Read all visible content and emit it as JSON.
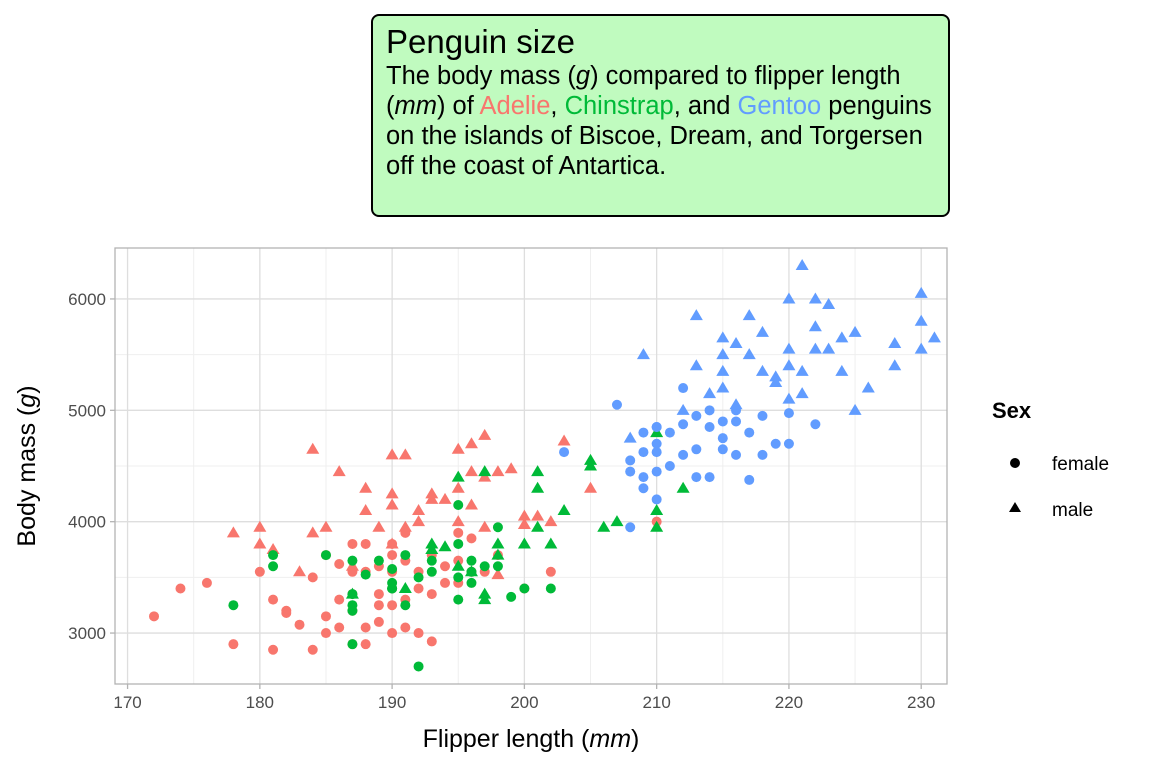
{
  "colors": {
    "Adelie": "#F8766D",
    "Chinstrap": "#00BA38",
    "Gentoo": "#619CFF",
    "title_box_fill": "#c0fbbf",
    "panel_border": "#b3b3b3",
    "grid_major": "#dedede",
    "grid_minor": "#efefef"
  },
  "chart_data": {
    "type": "scatter",
    "title": "Penguin size",
    "subtitle": {
      "p1": "The body mass (",
      "g": "g",
      "p2": ") compared to flipper length (",
      "mm": "mm",
      "p3": ") of ",
      "adelie": "Adelie",
      "sep1": ", ",
      "chinstrap": "Chinstrap",
      "sep2": ", and ",
      "gentoo": "Gentoo",
      "p4": " penguins on the islands of Biscoe, Dream, and Torgersen off the coast of Antartica."
    },
    "xlabel": {
      "prefix": "Flipper length (",
      "unit": "mm",
      "suffix": ")"
    },
    "ylabel": {
      "prefix": "Body mass (",
      "unit": "g",
      "suffix": ")"
    },
    "xlim": [
      169.05,
      231.95
    ],
    "ylim": [
      2542.5,
      6457.5
    ],
    "xticks": [
      170,
      180,
      190,
      200,
      210,
      220,
      230
    ],
    "yticks": [
      3000,
      4000,
      5000,
      6000
    ],
    "grid": true,
    "legend": {
      "title": "Sex",
      "position": "right",
      "entries": [
        {
          "label": "female",
          "shape": "circle"
        },
        {
          "label": "male",
          "shape": "triangle"
        }
      ]
    },
    "series": [
      {
        "name": "Adelie female",
        "species": "Adelie",
        "sex": "female",
        "x": [
          172,
          174,
          176,
          178,
          180,
          181,
          181,
          182,
          182,
          183,
          184,
          184,
          185,
          185,
          185,
          186,
          186,
          186,
          187,
          187,
          187,
          187,
          187,
          188,
          188,
          188,
          188,
          189,
          189,
          189,
          189,
          190,
          190,
          190,
          190,
          190,
          190,
          191,
          191,
          191,
          191,
          192,
          192,
          192,
          193,
          193,
          193,
          194,
          194,
          195,
          195,
          195,
          196,
          196,
          197,
          198,
          200,
          202,
          210
        ],
        "y": [
          3150,
          3400,
          3450,
          2900,
          3550,
          2850,
          3300,
          3200,
          3180,
          3075,
          2850,
          3500,
          3000,
          3150,
          3700,
          3050,
          3300,
          3620,
          2900,
          3200,
          3350,
          3550,
          3800,
          2900,
          3050,
          3550,
          3800,
          3100,
          3250,
          3350,
          3600,
          3000,
          3250,
          3400,
          3550,
          3700,
          3800,
          3050,
          3300,
          3650,
          3900,
          3000,
          3400,
          3550,
          2925,
          3350,
          3700,
          3450,
          3600,
          3450,
          3650,
          3900,
          3550,
          3850,
          3550,
          3700,
          3400,
          3550,
          4000
        ]
      },
      {
        "name": "Adelie male",
        "species": "Adelie",
        "sex": "male",
        "x": [
          178,
          180,
          180,
          181,
          183,
          184,
          184,
          185,
          186,
          187,
          188,
          188,
          189,
          190,
          190,
          190,
          190,
          191,
          191,
          192,
          192,
          193,
          193,
          194,
          195,
          195,
          195,
          196,
          196,
          196,
          197,
          197,
          197,
          198,
          198,
          199,
          200,
          200,
          201,
          202,
          203,
          205
        ],
        "y": [
          3900,
          3950,
          3800,
          3750,
          3550,
          3900,
          4650,
          3950,
          4450,
          3600,
          4300,
          4100,
          3950,
          4600,
          4250,
          3800,
          4150,
          4600,
          3950,
          4100,
          4000,
          4200,
          4250,
          4200,
          4650,
          4300,
          4000,
          4700,
          4450,
          4150,
          4775,
          4400,
          3950,
          4450,
          3525,
          4475,
          4050,
          3975,
          4050,
          4000,
          4725,
          4300
        ]
      },
      {
        "name": "Chinstrap female",
        "species": "Chinstrap",
        "sex": "female",
        "x": [
          178,
          181,
          181,
          185,
          187,
          187,
          187,
          187,
          187,
          188,
          189,
          190,
          190,
          190,
          190,
          191,
          191,
          192,
          192,
          193,
          193,
          195,
          195,
          195,
          195,
          196,
          196,
          196,
          197,
          198,
          198,
          199,
          200,
          202
        ],
        "y": [
          3250,
          3700,
          3600,
          3700,
          3650,
          3350,
          3200,
          3250,
          2900,
          3525,
          3650,
          3450,
          3575,
          3400,
          3400,
          3700,
          3250,
          3500,
          2700,
          3650,
          3550,
          4150,
          3800,
          3300,
          3500,
          3650,
          3550,
          3450,
          3600,
          3950,
          3600,
          3325,
          3400,
          3400
        ]
      },
      {
        "name": "Chinstrap male",
        "species": "Chinstrap",
        "sex": "male",
        "x": [
          187,
          191,
          193,
          193,
          194,
          195,
          195,
          196,
          197,
          197,
          197,
          198,
          198,
          200,
          201,
          201,
          201,
          202,
          203,
          205,
          205,
          206,
          207,
          210,
          210,
          210,
          212
        ],
        "y": [
          3350,
          3400,
          3800,
          3750,
          3775,
          4400,
          3600,
          3550,
          4450,
          3350,
          3300,
          3800,
          3700,
          3800,
          4450,
          4300,
          3950,
          3800,
          4100,
          4550,
          4500,
          3950,
          4000,
          4800,
          4100,
          3950,
          4300
        ]
      },
      {
        "name": "Gentoo female",
        "species": "Gentoo",
        "sex": "female",
        "x": [
          203,
          207,
          208,
          208,
          208,
          209,
          209,
          209,
          209,
          210,
          210,
          210,
          210,
          210,
          210,
          211,
          211,
          212,
          212,
          212,
          213,
          213,
          213,
          214,
          214,
          214,
          215,
          215,
          215,
          216,
          216,
          216,
          217,
          217,
          218,
          218,
          219,
          220,
          220,
          222
        ],
        "y": [
          4625,
          5050,
          4450,
          4550,
          3950,
          4300,
          4625,
          4800,
          4400,
          4850,
          4700,
          4625,
          4450,
          4200,
          4850,
          4800,
          4500,
          5200,
          4875,
          4600,
          4400,
          4950,
          4650,
          5000,
          4850,
          4400,
          4750,
          4650,
          4900,
          4900,
          5000,
          4600,
          4375,
          4800,
          4950,
          4600,
          4700,
          4700,
          4975,
          4875
        ]
      },
      {
        "name": "Gentoo male",
        "species": "Gentoo",
        "sex": "male",
        "x": [
          208,
          209,
          212,
          213,
          213,
          214,
          215,
          215,
          215,
          215,
          216,
          216,
          217,
          217,
          218,
          218,
          219,
          219,
          220,
          220,
          220,
          220,
          221,
          221,
          221,
          222,
          222,
          222,
          223,
          223,
          224,
          224,
          225,
          225,
          226,
          228,
          228,
          230,
          230,
          230,
          231
        ],
        "y": [
          4750,
          5500,
          5000,
          5400,
          5850,
          5150,
          5650,
          5500,
          5350,
          5200,
          5600,
          5050,
          5850,
          5500,
          5700,
          5350,
          5300,
          5250,
          6000,
          5550,
          5400,
          5100,
          6300,
          5350,
          5150,
          6000,
          5750,
          5550,
          5550,
          5950,
          5650,
          5350,
          5700,
          5000,
          5200,
          5600,
          5400,
          6050,
          5800,
          5550,
          5650
        ]
      }
    ]
  }
}
